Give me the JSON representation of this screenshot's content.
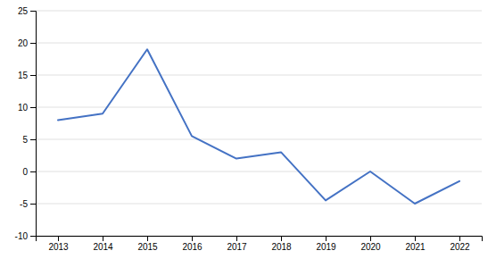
{
  "chart_data": {
    "type": "line",
    "x": [
      2013,
      2014,
      2015,
      2016,
      2017,
      2018,
      2019,
      2020,
      2021,
      2022
    ],
    "values": [
      8.0,
      9.0,
      19.0,
      5.5,
      2.0,
      3.0,
      -4.5,
      0.0,
      -5.0,
      -1.5
    ],
    "color": "#4472C4",
    "xlim": [
      2012.5,
      2022.5
    ],
    "xticks": [
      2013,
      2014,
      2015,
      2016,
      2017,
      2018,
      2019,
      2020,
      2021,
      2022
    ],
    "ylim": [
      -10,
      25
    ],
    "yticks": [
      -10,
      -5,
      0,
      5,
      10,
      15,
      20,
      25
    ],
    "grid": true
  }
}
